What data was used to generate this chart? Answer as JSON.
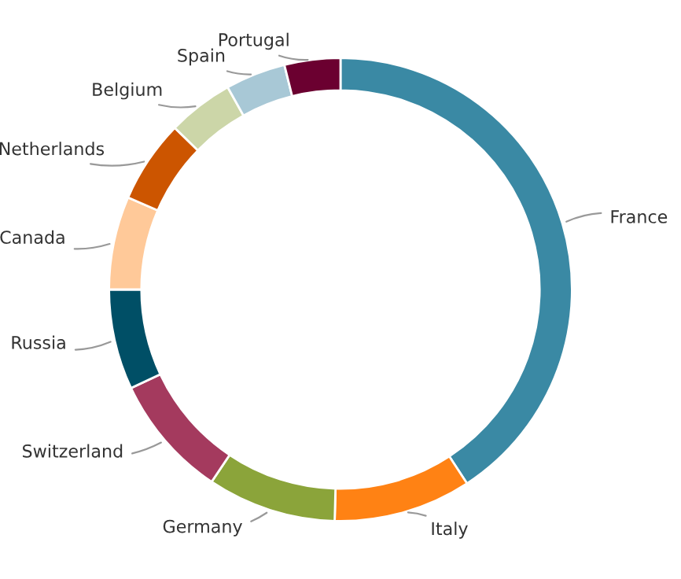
{
  "chart_data": {
    "type": "donut",
    "categories": [
      "France",
      "Italy",
      "Germany",
      "Switzerland",
      "Russia",
      "Canada",
      "Netherlands",
      "Belgium",
      "Spain",
      "Portugal"
    ],
    "values": [
      40.8,
      9.6,
      9,
      8.6,
      7,
      6.5,
      5.8,
      4.6,
      4.2,
      3.9
    ],
    "colors": [
      "#3a89a4",
      "#ff8214",
      "#8ba43a",
      "#a43a5e",
      "#004f66",
      "#ffc999",
      "#cc5500",
      "#ccd6a8",
      "#a8c8d6",
      "#6b0030"
    ],
    "legend": false
  }
}
